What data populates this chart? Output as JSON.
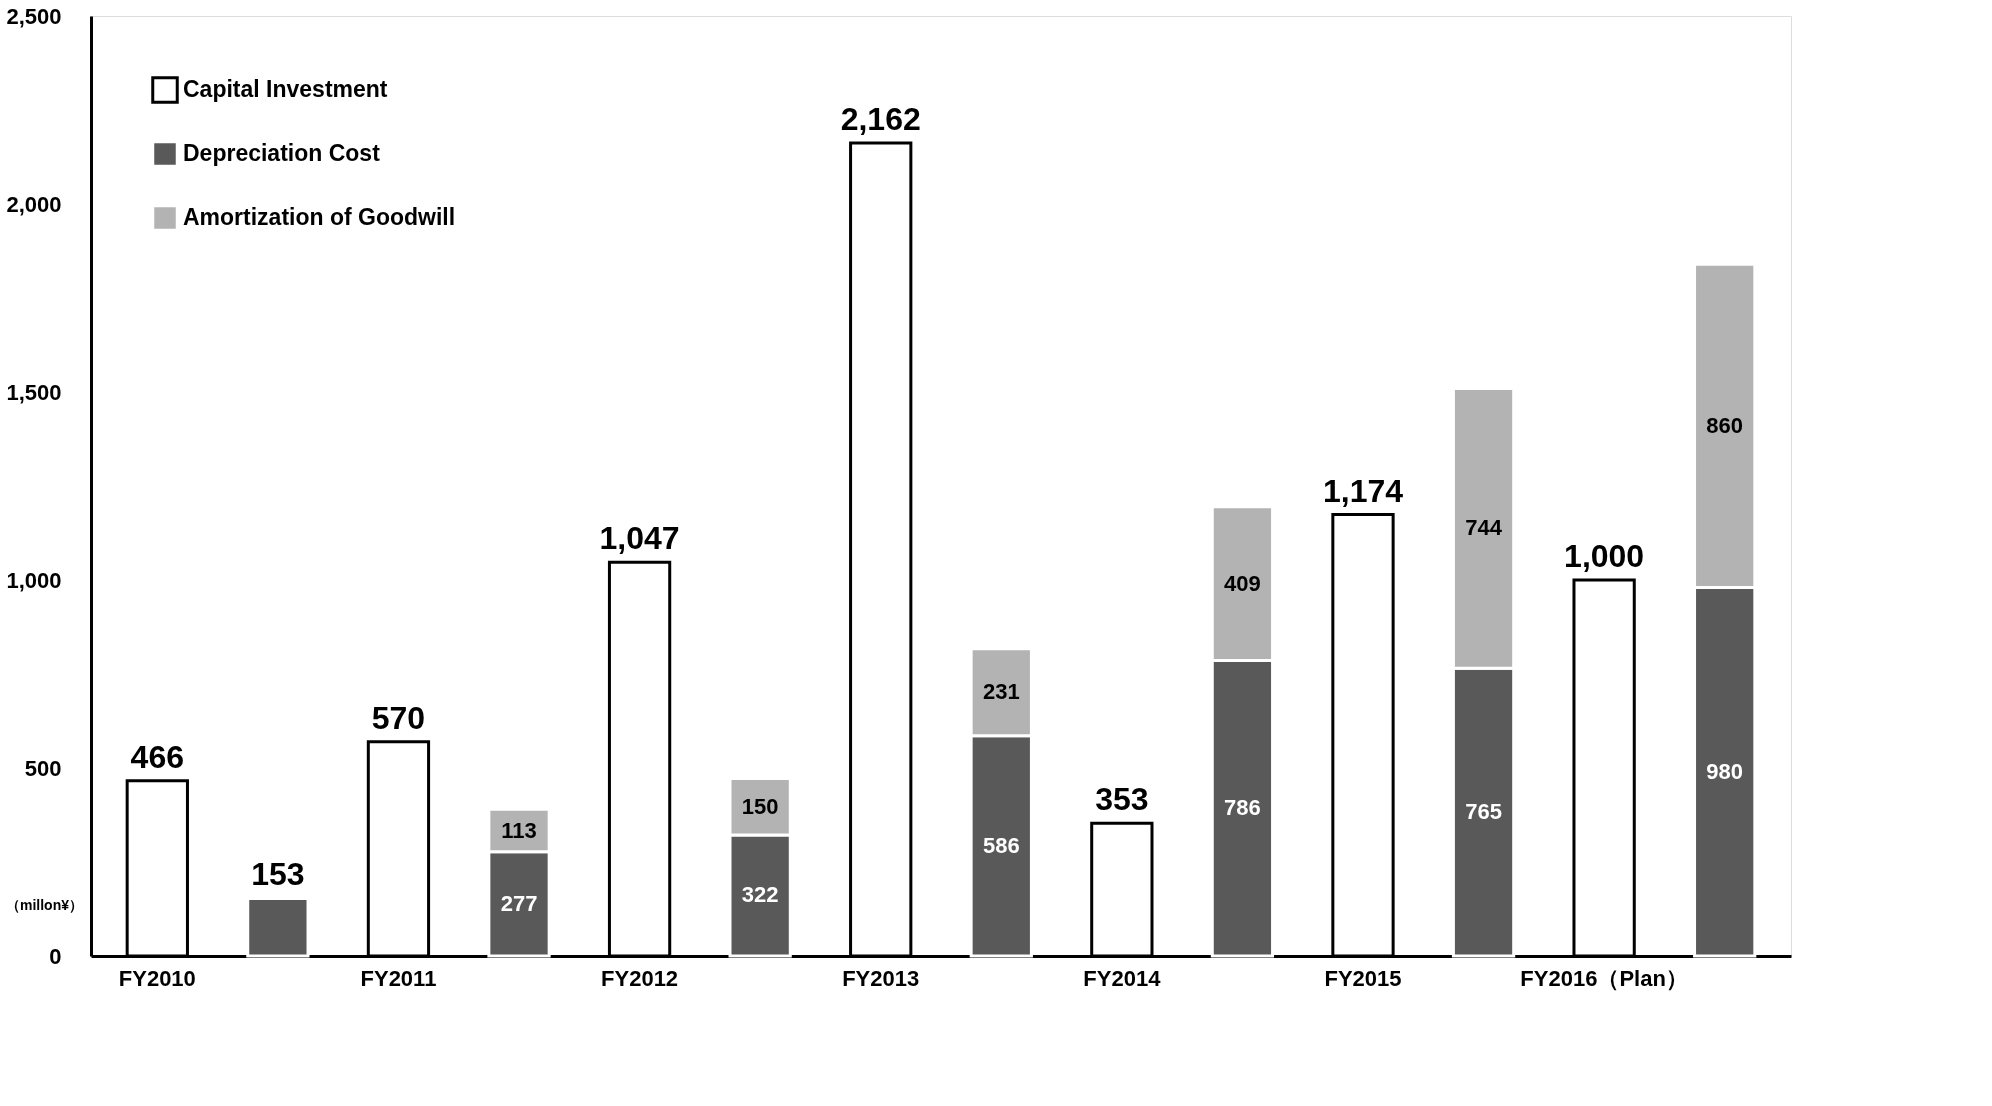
{
  "chart_data": {
    "type": "bar",
    "categories": [
      "FY2010",
      null,
      "FY2011",
      null,
      "FY2012",
      null,
      "FY2013",
      null,
      "FY2014",
      null,
      "FY2015",
      null,
      "FY2016（Plan）",
      null
    ],
    "series": [
      {
        "name": "Capital Investment",
        "color": "#ffffff",
        "values": [
          466,
          null,
          570,
          null,
          1047,
          null,
          2162,
          null,
          353,
          null,
          1174,
          null,
          1000,
          null
        ],
        "value_labels": [
          "466",
          null,
          "570",
          null,
          "1,047",
          null,
          "2,162",
          null,
          "353",
          null,
          "1,174",
          null,
          "1,000",
          null
        ]
      },
      {
        "name": "Depreciation Cost",
        "color": "#595959",
        "values": [
          null,
          153,
          null,
          277,
          null,
          322,
          null,
          586,
          null,
          786,
          null,
          765,
          null,
          980
        ],
        "value_labels": [
          null,
          "153",
          null,
          "277",
          null,
          "322",
          null,
          "586",
          null,
          "786",
          null,
          "765",
          null,
          "980"
        ]
      },
      {
        "name": "Amortization of Goodwill",
        "color": "#b3b3b3",
        "values": [
          null,
          null,
          null,
          113,
          null,
          150,
          null,
          231,
          null,
          409,
          null,
          744,
          null,
          860
        ],
        "value_labels": [
          null,
          null,
          null,
          "113",
          null,
          "150",
          null,
          "231",
          null,
          "409",
          null,
          "744",
          null,
          "860"
        ]
      }
    ],
    "stacked": true,
    "ylim": [
      0,
      2500
    ],
    "yticks": [
      0,
      500,
      {
        "value": 1000,
        "label": "1,000"
      },
      {
        "value": 1500,
        "label": "1,500"
      },
      {
        "value": 2000,
        "label": "2,000"
      },
      {
        "value": 2500,
        "label": "2,500"
      }
    ],
    "grid": false,
    "legend": "top left",
    "annotations": [
      "（millon¥）"
    ]
  }
}
